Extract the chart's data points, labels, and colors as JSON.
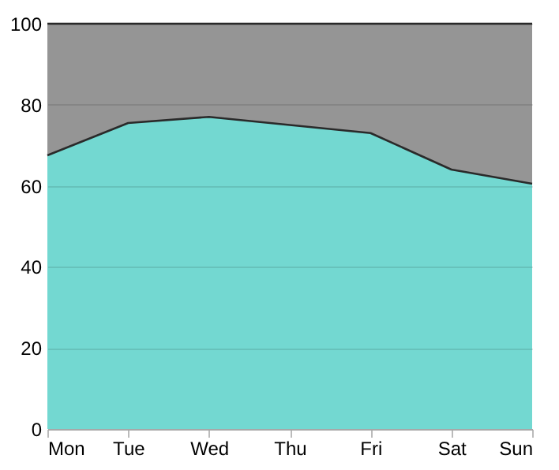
{
  "chart_data": {
    "type": "area",
    "stacked": true,
    "categories": [
      "Mon",
      "Tue",
      "Wed",
      "Thu",
      "Fri",
      "Sat",
      "Sun"
    ],
    "series": [
      {
        "color": "#73d8d1",
        "values": [
          67.5,
          75.5,
          77,
          75,
          73,
          64,
          60.5
        ]
      },
      {
        "color": "#959595",
        "values": [
          32.5,
          24.5,
          23,
          25,
          27,
          36,
          39.5
        ]
      }
    ],
    "ylim": [
      0,
      100
    ],
    "yticks": [
      0,
      20,
      40,
      60,
      80,
      100
    ],
    "grid": "y"
  }
}
